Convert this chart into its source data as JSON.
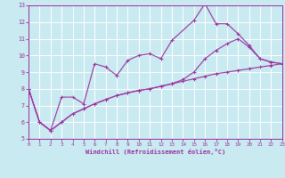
{
  "background_color": "#c8eaf0",
  "grid_color": "#ffffff",
  "line_color": "#9b30a0",
  "x_label": "Windchill (Refroidissement éolien,°C)",
  "x_ticks": [
    0,
    1,
    2,
    3,
    4,
    5,
    6,
    7,
    8,
    9,
    10,
    11,
    12,
    13,
    14,
    15,
    16,
    17,
    18,
    19,
    20,
    21,
    22,
    23
  ],
  "ylim": [
    5,
    13
  ],
  "xlim": [
    0,
    23
  ],
  "y_ticks": [
    5,
    6,
    7,
    8,
    9,
    10,
    11,
    12,
    13
  ],
  "series": [
    [
      8.0,
      6.0,
      5.5,
      7.5,
      7.5,
      7.1,
      9.5,
      9.3,
      8.8,
      9.7,
      10.0,
      10.1,
      9.8,
      10.9,
      null,
      12.1,
      13.1,
      11.9,
      11.9,
      11.3,
      10.6,
      9.8,
      9.6,
      9.5
    ],
    [
      8.0,
      6.0,
      5.5,
      6.0,
      6.5,
      6.8,
      7.1,
      7.35,
      7.6,
      7.75,
      7.9,
      8.0,
      8.15,
      8.3,
      8.45,
      8.6,
      8.75,
      8.9,
      9.0,
      9.1,
      9.2,
      9.3,
      9.4,
      9.5
    ],
    [
      8.0,
      6.0,
      5.5,
      6.0,
      6.5,
      6.8,
      7.1,
      7.35,
      7.6,
      7.75,
      7.9,
      8.0,
      8.15,
      8.3,
      8.55,
      9.0,
      9.8,
      10.3,
      10.7,
      11.0,
      10.5,
      9.8,
      9.6,
      9.5
    ]
  ]
}
